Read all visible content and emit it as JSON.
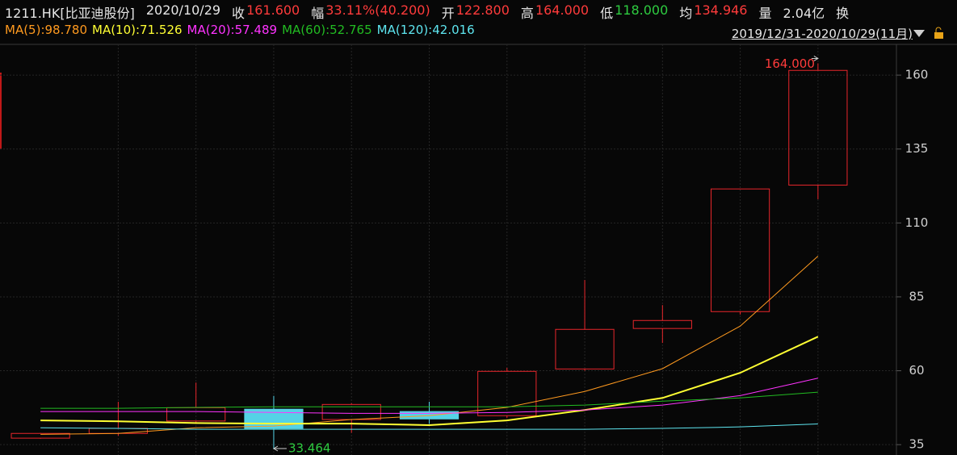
{
  "header": [
    {
      "text": "1211.HK[比亚迪股份]",
      "color": "#e6e6e6"
    },
    {
      "text": "2020/10/29",
      "color": "#e6e6e6"
    },
    {
      "text": "收",
      "color": "#e6e6e6"
    },
    {
      "text": "161.600",
      "color": "#ff3b3b"
    },
    {
      "text": "幅",
      "color": "#e6e6e6"
    },
    {
      "text": "33.11%(40.200)",
      "color": "#ff3b3b"
    },
    {
      "text": "开",
      "color": "#e6e6e6"
    },
    {
      "text": "122.800",
      "color": "#ff3b3b"
    },
    {
      "text": "高",
      "color": "#e6e6e6"
    },
    {
      "text": "164.000",
      "color": "#ff3b3b"
    },
    {
      "text": "低",
      "color": "#e6e6e6"
    },
    {
      "text": "118.000",
      "color": "#2ecc40"
    },
    {
      "text": "均",
      "color": "#e6e6e6"
    },
    {
      "text": "134.946",
      "color": "#ff3b3b"
    },
    {
      "text": "量",
      "color": "#e6e6e6"
    },
    {
      "text": "2.04亿",
      "color": "#e6e6e6"
    },
    {
      "text": "换",
      "color": "#e6e6e6"
    }
  ],
  "date_range": "2019/12/31-2020/10/29(11月)",
  "chart_data": {
    "type": "candlestick",
    "open": [
      37.2,
      38.8,
      43,
      47,
      43.5,
      46.2,
      44.8,
      60.6,
      74.3,
      80,
      122.8
    ],
    "high": [
      39,
      49.5,
      56,
      51.5,
      49,
      49.5,
      61,
      90.7,
      82.2,
      121.5,
      164
    ],
    "low": [
      37,
      38,
      42,
      33.464,
      39,
      42,
      44,
      60,
      69.4,
      79,
      118
    ],
    "close": [
      38.8,
      40.5,
      47.5,
      40.5,
      48.6,
      43.7,
      59.8,
      74,
      77,
      121.5,
      161.6
    ],
    "up_color": "#e8262b",
    "down_color": "#54d2e6",
    "series": [
      {
        "name": "MA(5):98.780",
        "color": "#ff9a1f",
        "values": [
          38.5,
          38.8,
          40.7,
          41.3,
          43.5,
          44.8,
          47.6,
          53,
          60.7,
          75.1,
          98.78
        ]
      },
      {
        "name": "MA(10):71.526",
        "color": "#ffff33",
        "values": [
          43.2,
          42.9,
          42.3,
          42.1,
          42.1,
          41.6,
          43.2,
          46.7,
          50.8,
          59.3,
          71.526
        ]
      },
      {
        "name": "MA(20):57.489",
        "color": "#ff33ff",
        "values": [
          46.2,
          46.2,
          46.2,
          45.9,
          45.6,
          45.6,
          45.9,
          46.7,
          48.4,
          51.6,
          57.489
        ]
      },
      {
        "name": "MA(60):52.765",
        "color": "#22bb22",
        "values": [
          47.3,
          47.3,
          47.6,
          47.8,
          47.8,
          47.8,
          47.8,
          48.4,
          49.7,
          50.8,
          52.765
        ]
      },
      {
        "name": "MA(120):42.016",
        "color": "#5ee6f0",
        "values": [
          40.7,
          40.5,
          40.2,
          40.2,
          40.2,
          40.2,
          40.2,
          40.2,
          40.5,
          41,
          42.016
        ]
      }
    ],
    "annotations": [
      {
        "text": "164.000",
        "index": 10,
        "value": 164,
        "color": "#ff3b3b"
      },
      {
        "text": "33.464",
        "index": 3,
        "value": 33.464,
        "color": "#2ecc40"
      }
    ],
    "ylim": [
      31.5,
      170.4
    ],
    "yticks": [
      35,
      60,
      85,
      110,
      135,
      160
    ],
    "grid": true
  }
}
